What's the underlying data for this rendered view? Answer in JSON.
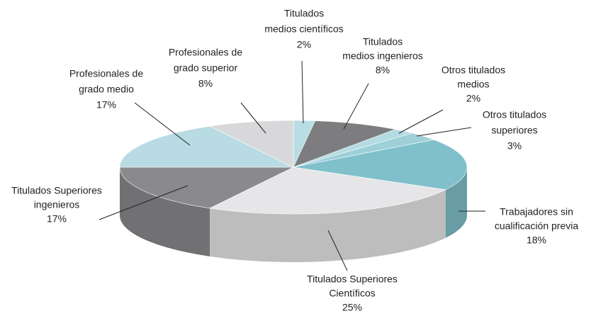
{
  "chart_data": {
    "type": "pie",
    "categories": [
      [
        "Titulados",
        "medios científicos"
      ],
      [
        "Titulados",
        "medios ingenieros"
      ],
      [
        "Otros titulados",
        "medios"
      ],
      [
        "Otros titulados",
        "superiores"
      ],
      [
        "Trabajadores sin",
        "cualificación previa"
      ],
      [
        "Titulados Superiores",
        "Científicos"
      ],
      [
        "Titulados Superiores",
        "ingenieros"
      ],
      [
        "Profesionales de",
        "grado medio"
      ],
      [
        "Profesionales de",
        "grado superior"
      ]
    ],
    "values": [
      2,
      8,
      2,
      3,
      18,
      25,
      17,
      17,
      8
    ],
    "value_labels": [
      "2%",
      "8%",
      "2%",
      "3%",
      "18%",
      "25%",
      "17%",
      "17%",
      "8%"
    ],
    "colors": [
      "#b8dde4",
      "#7d7d80",
      "#b5dbe2",
      "#9fd0d9",
      "#7fc0cb",
      "#e6e6e8",
      "#8a8a8d",
      "#b9dbe3",
      "#d8d8da"
    ]
  }
}
